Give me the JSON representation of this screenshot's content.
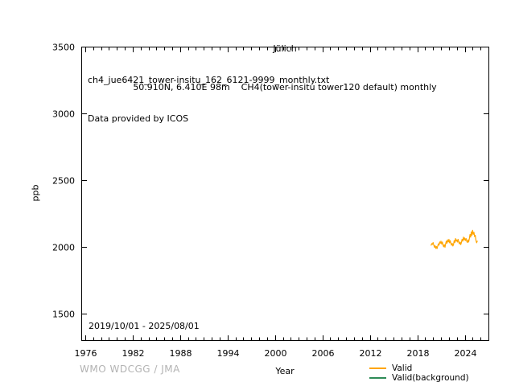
{
  "title": {
    "line1": "Jülich",
    "line2": "50.910N, 6.410E 98m    CH4(tower-insitu tower120 default) monthly"
  },
  "annotation": {
    "filename": "ch4_jue6421_tower-insitu_162_6121-9999_monthly.txt",
    "provider": "Data provided by ICOS"
  },
  "date_range": "2019/10/01 - 2025/08/01",
  "footer": {
    "credit": "WMO WDCGG / JMA",
    "credit_color": "#b3b3b3"
  },
  "axes": {
    "xlabel": "Year",
    "ylabel": "ppb"
  },
  "legend": [
    {
      "label": "Valid",
      "color": "#ffa500"
    },
    {
      "label": "Valid(background)",
      "color": "#2e8b57"
    }
  ],
  "chart_data": {
    "type": "line",
    "title": "Jülich",
    "subtitle": "50.910N, 6.410E 98m    CH4(tower-insitu tower120 default) monthly",
    "xlabel": "Year",
    "ylabel": "ppb",
    "xlim": [
      1975.5,
      2027.0
    ],
    "ylim": [
      1300,
      3500
    ],
    "xticks": [
      1976,
      1982,
      1988,
      1994,
      2000,
      2006,
      2012,
      2018,
      2024
    ],
    "yticks": [
      1500,
      2000,
      2500,
      3000,
      3500
    ],
    "minor_xtick_step_years": 1,
    "grid": false,
    "tick_direction": "in",
    "legend_position": "below-axes-right",
    "series": [
      {
        "name": "Valid",
        "color": "#ffa500",
        "x_start_year": 2019.75,
        "x_step_years": 0.083333,
        "values": [
          2012,
          2024,
          2018,
          2032,
          2014,
          1996,
          2008,
          1988,
          2002,
          1986,
          2006,
          2022,
          2012,
          2036,
          2026,
          2042,
          2020,
          2036,
          2014,
          2000,
          2016,
          1996,
          2022,
          2042,
          2026,
          2052,
          2036,
          2056,
          2030,
          2046,
          2026,
          2012,
          2026,
          2006,
          2016,
          2046,
          2032,
          2062,
          2042,
          2052,
          2036,
          2056,
          2032,
          2022,
          2036,
          2016,
          2032,
          2056,
          2042,
          2072,
          2052,
          2066,
          2046,
          2062,
          2042,
          2032,
          2052,
          2036,
          2062,
          2092,
          2072,
          2112,
          2086,
          2124,
          2094,
          2108,
          2076,
          2086,
          2050,
          2030,
          2042
        ]
      },
      {
        "name": "Valid(background)",
        "color": "#2e8b57",
        "x_start_year": 2019.75,
        "x_step_years": 0.083333,
        "values": []
      }
    ]
  }
}
